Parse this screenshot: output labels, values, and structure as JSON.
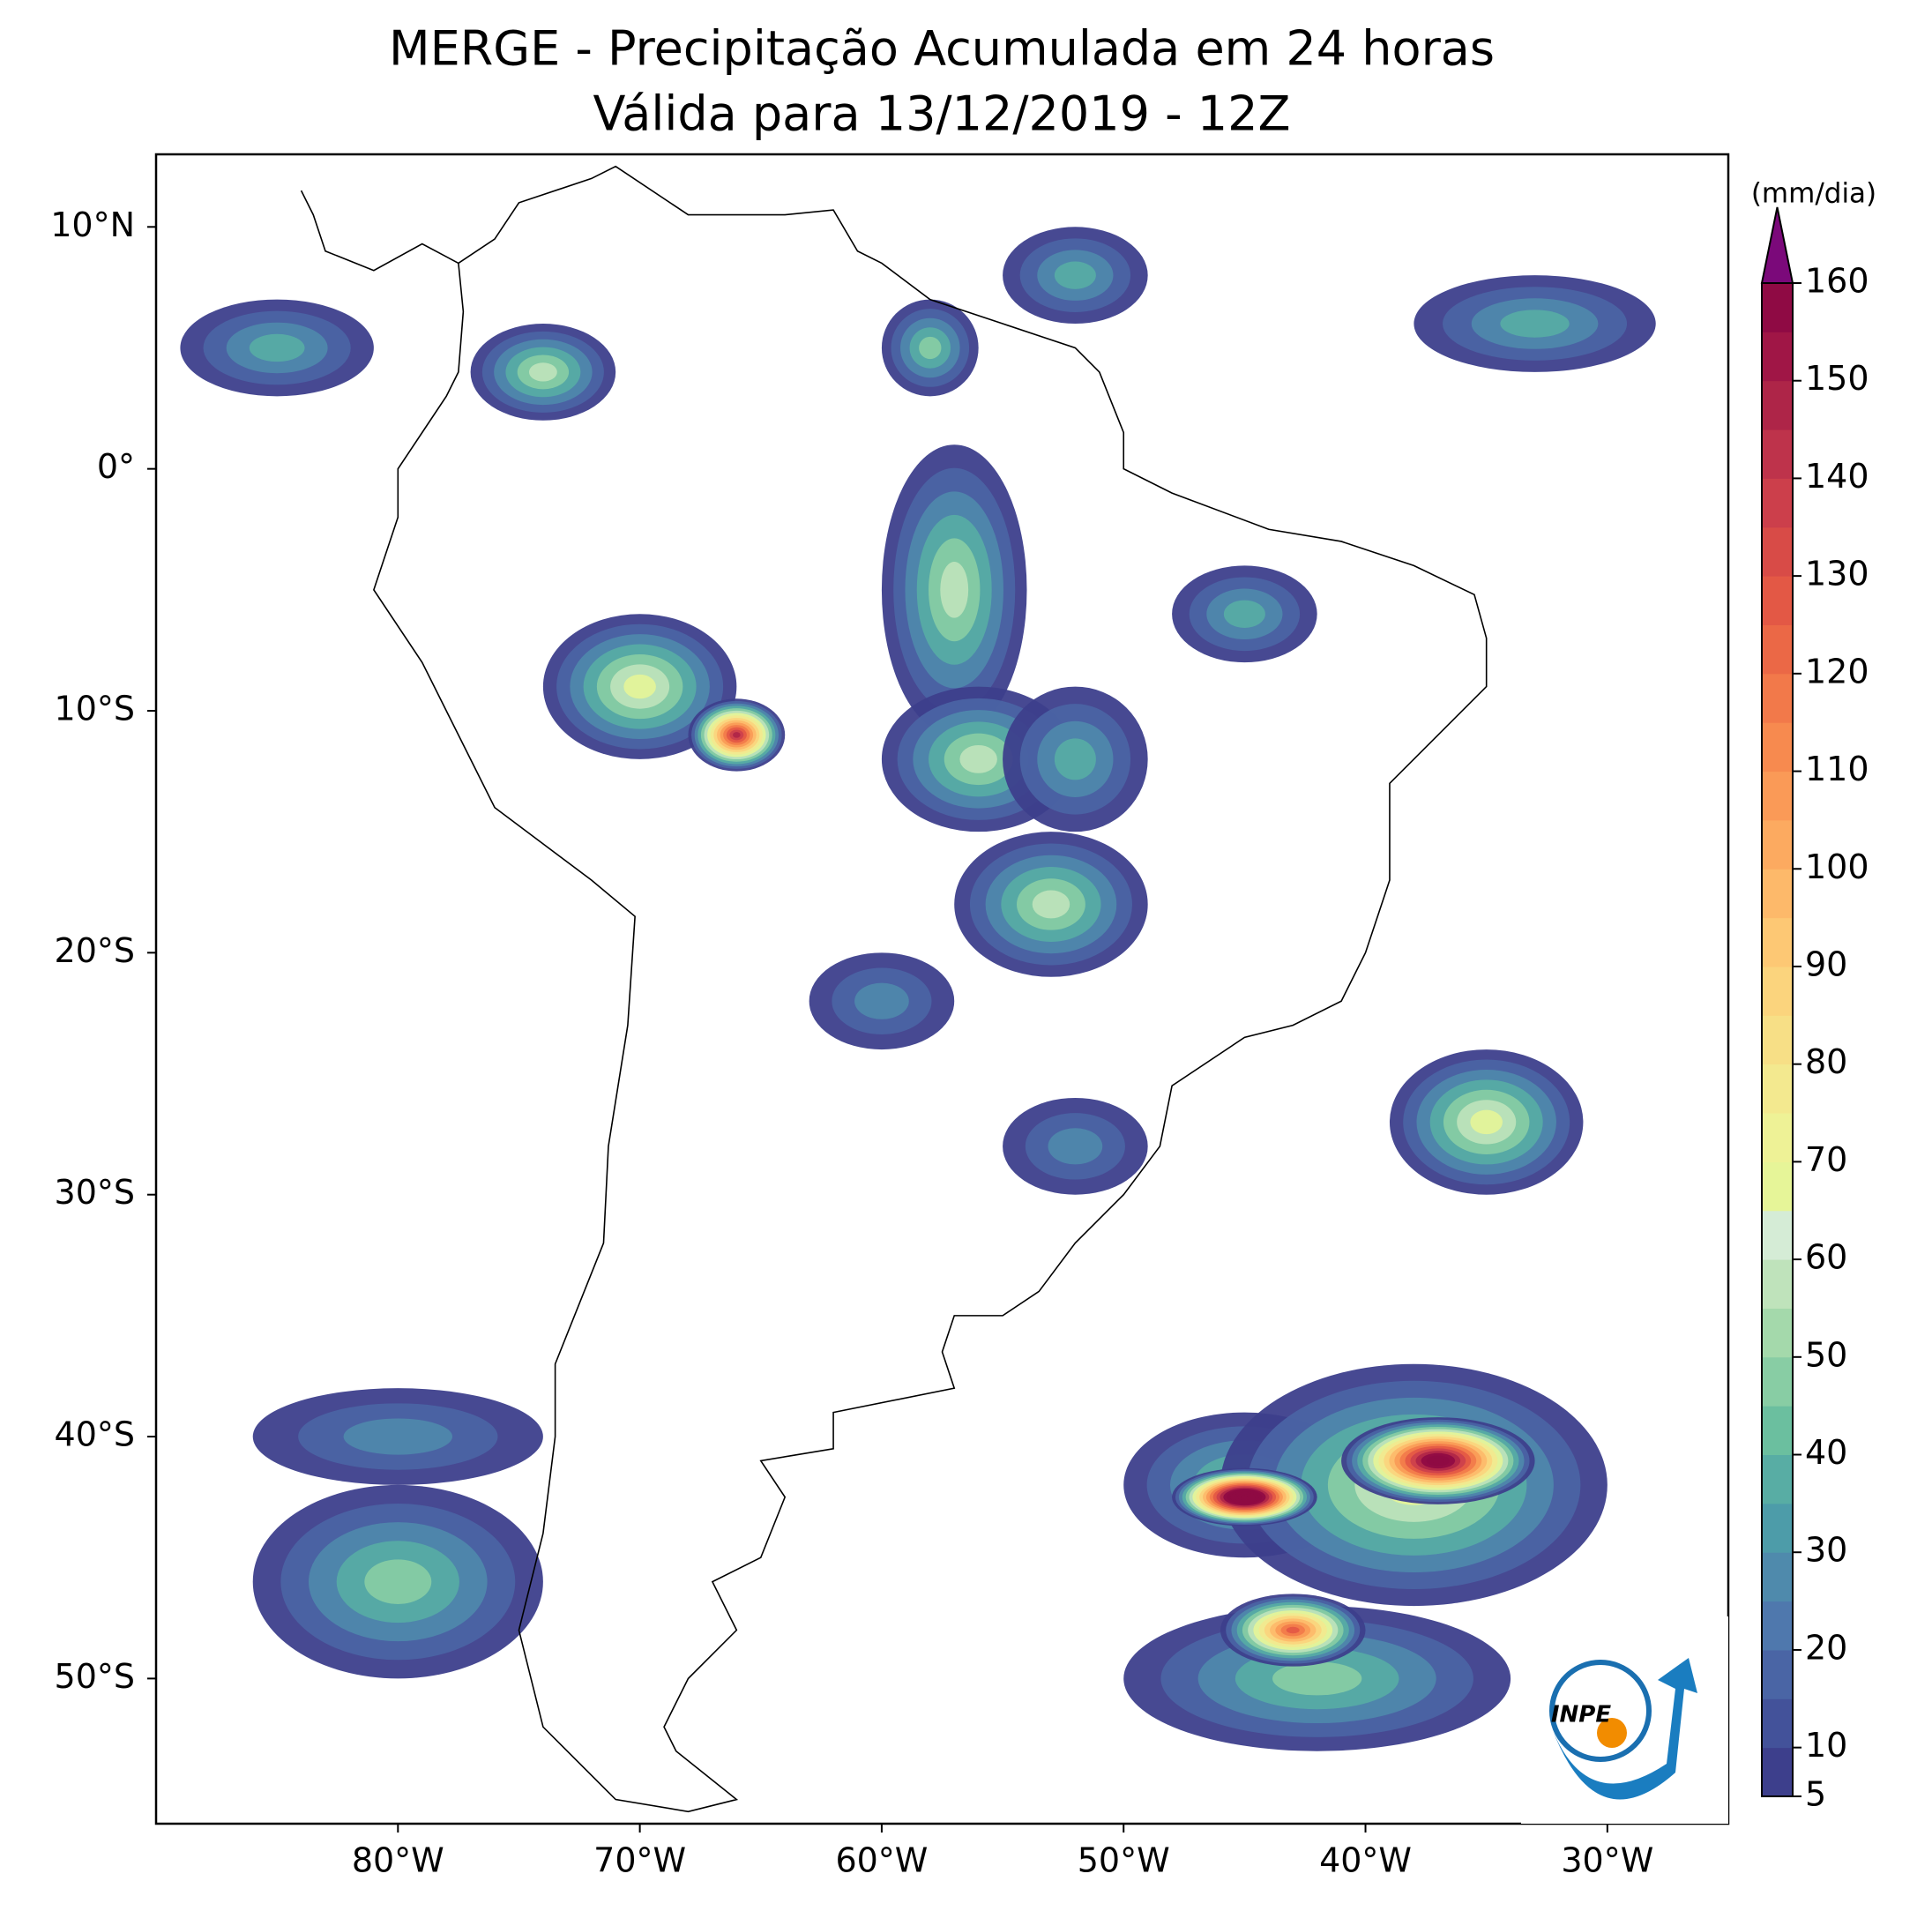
{
  "title": [
    "MERGE - Precipitação Acumulada em 24 horas",
    "Válida para 13/12/2019 - 12Z"
  ],
  "map": {
    "lon_range": [
      -90,
      -25
    ],
    "lat_range": [
      -56,
      13
    ],
    "lon_ticks": [
      {
        "value": -80,
        "label": "80°W"
      },
      {
        "value": -70,
        "label": "70°W"
      },
      {
        "value": -60,
        "label": "60°W"
      },
      {
        "value": -50,
        "label": "50°W"
      },
      {
        "value": -40,
        "label": "40°W"
      },
      {
        "value": -30,
        "label": "30°W"
      }
    ],
    "lat_ticks": [
      {
        "value": 10,
        "label": "10°N"
      },
      {
        "value": 0,
        "label": "0°"
      },
      {
        "value": -10,
        "label": "10°S"
      },
      {
        "value": -20,
        "label": "20°S"
      },
      {
        "value": -30,
        "label": "30°S"
      },
      {
        "value": -40,
        "label": "40°S"
      },
      {
        "value": -50,
        "label": "50°S"
      }
    ]
  },
  "colorbar": {
    "label": "(mm/dia)",
    "range": [
      5,
      160
    ],
    "ticks": [
      5,
      10,
      20,
      30,
      40,
      50,
      60,
      70,
      80,
      90,
      100,
      110,
      120,
      130,
      140,
      150,
      160
    ],
    "colors": [
      "#3d3f8c",
      "#43529a",
      "#4a65a5",
      "#4f78ad",
      "#4f8aac",
      "#4d9ca9",
      "#58ada4",
      "#6bbf9f",
      "#88cda4",
      "#a4d9ab",
      "#bfe3bb",
      "#d5ecd6",
      "#e6f598",
      "#eef296",
      "#f3e98f",
      "#f7df86",
      "#fbd47d",
      "#fdc874",
      "#fdb96a",
      "#fcaa60",
      "#fa9a57",
      "#f78a4f",
      "#f2794a",
      "#eb6846",
      "#e35845",
      "#d84b47",
      "#cc3f4b",
      "#be334b",
      "#ae2548",
      "#a01646",
      "#8f0a44"
    ],
    "extend_color": "#7b097a"
  },
  "logo": "INPE"
}
